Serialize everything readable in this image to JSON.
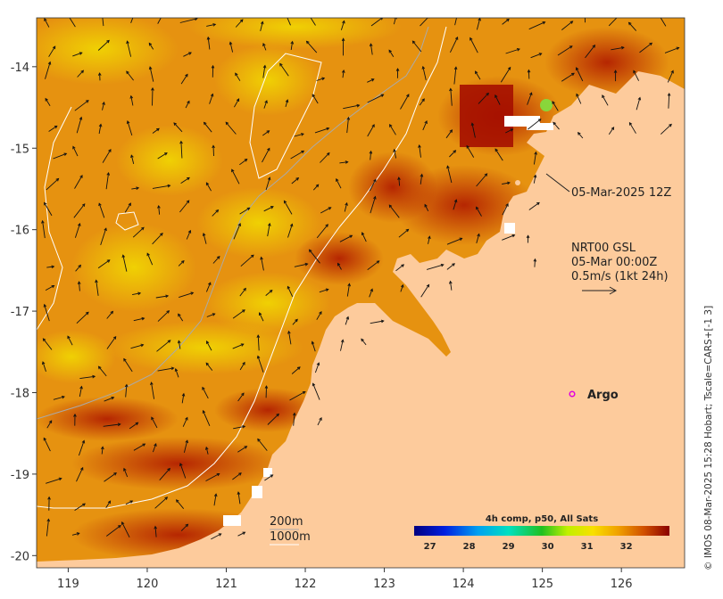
{
  "map": {
    "x_ticks": [
      "119",
      "120",
      "121",
      "122",
      "123",
      "124",
      "125",
      "126"
    ],
    "y_ticks": [
      "-14",
      "-15",
      "-16",
      "-17",
      "-18",
      "-19",
      "-20"
    ],
    "x_range": [
      118.6,
      126.8
    ],
    "y_range": [
      -13.4,
      -20.15
    ]
  },
  "annotations": {
    "timestamp": "05-Mar-2025 12Z",
    "product": "NRT00 GSL",
    "current_time": "05-Mar 00:00Z",
    "scale": "0.5m/s (1kt 24h)",
    "argo": "Argo",
    "depth_200": "200m",
    "depth_1000": "1000m"
  },
  "colorbar": {
    "title": "4h comp, p50, All Sats",
    "ticks": [
      "27",
      "28",
      "29",
      "30",
      "31",
      "32"
    ],
    "range": [
      26.6,
      33.1
    ]
  },
  "credit": "© IMOS 08-Mar-2025 15:28 Hobart; Tscale=CARS+[-1 3]",
  "colors": {
    "land": "#fdcb9c",
    "sst_warm": "#e88a10",
    "sst_hot": "#a50f00",
    "argo_marker": "#e000e0",
    "contour_1000": "#ffffff",
    "contour_200": "#aaaaaa"
  }
}
